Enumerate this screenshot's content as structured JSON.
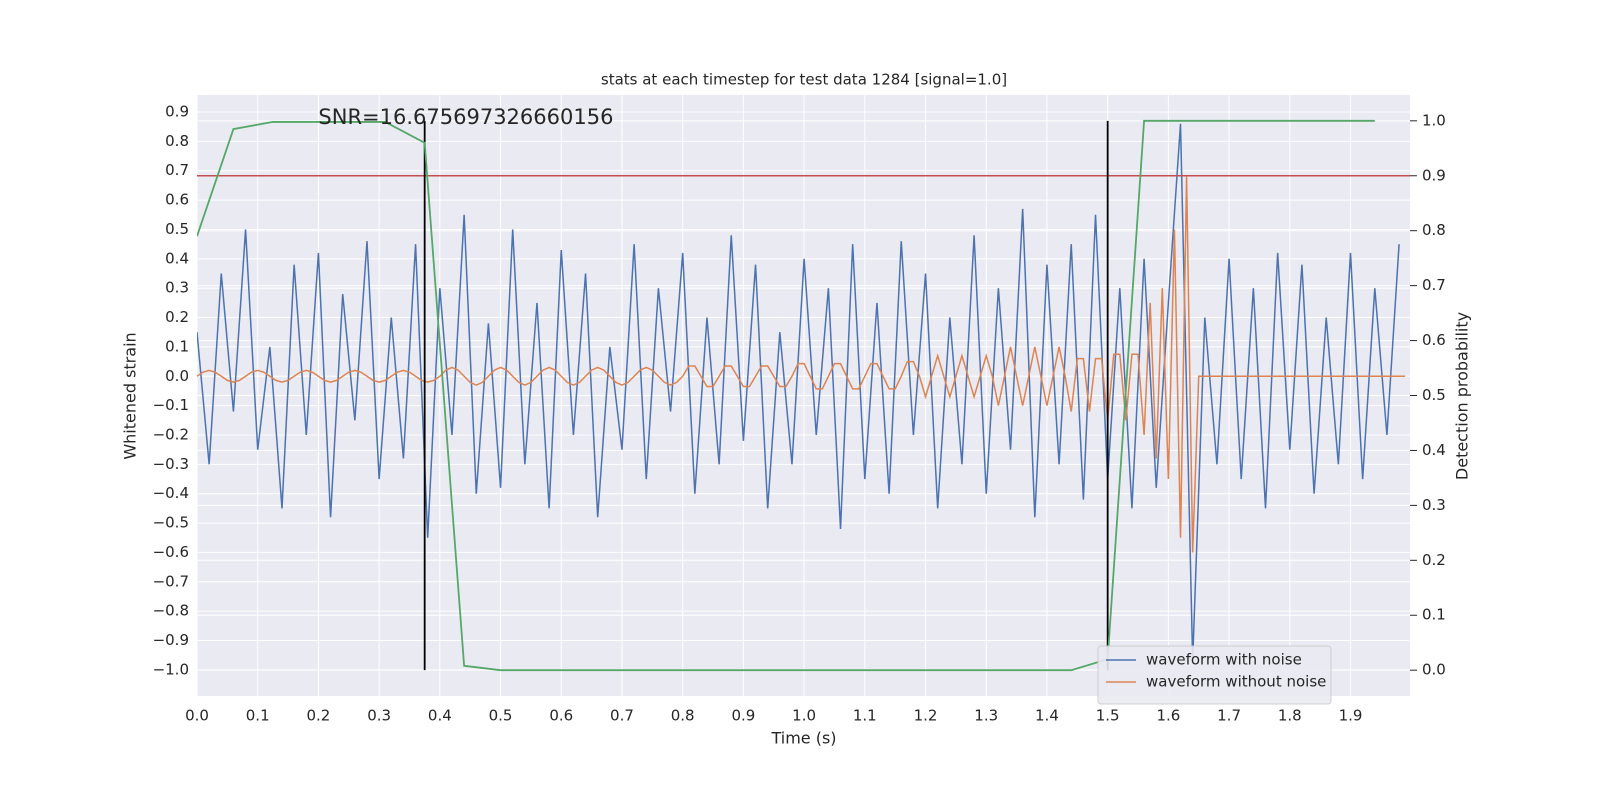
{
  "chart_data": {
    "type": "line",
    "title": "stats at each timestep for test data 1284 [signal=1.0]",
    "xlabel": "Time (s)",
    "ylabel": "Whitened strain",
    "y2label": "Detection probability",
    "xlim": [
      0,
      1.998
    ],
    "ylim": [
      -1.089,
      0.958
    ],
    "y2lim": [
      -0.047,
      1.047
    ],
    "xticks": [
      {
        "value": 0,
        "label": "0.0"
      },
      0.1,
      0.2,
      0.3,
      0.4,
      0.5,
      0.6,
      0.7,
      0.8,
      0.9,
      {
        "value": 1,
        "label": "1.0"
      },
      1.1,
      1.2,
      1.3,
      1.4,
      1.5,
      1.6,
      1.7,
      1.8,
      1.9
    ],
    "yticks": [
      {
        "value": -1,
        "label": "−1.0"
      },
      {
        "value": -0.9,
        "label": "−0.9"
      },
      {
        "value": -0.8,
        "label": "−0.8"
      },
      {
        "value": -0.7,
        "label": "−0.7"
      },
      {
        "value": -0.6,
        "label": "−0.6"
      },
      {
        "value": -0.5,
        "label": "−0.5"
      },
      {
        "value": -0.4,
        "label": "−0.4"
      },
      {
        "value": -0.3,
        "label": "−0.3"
      },
      {
        "value": -0.2,
        "label": "−0.2"
      },
      {
        "value": -0.1,
        "label": "−0.1"
      },
      {
        "value": 0,
        "label": "0.0"
      },
      0.1,
      0.2,
      0.3,
      0.4,
      0.5,
      0.6,
      0.7,
      0.8,
      0.9
    ],
    "y2ticks": [
      {
        "value": 0,
        "label": "0.0"
      },
      0.1,
      0.2,
      0.3,
      0.4,
      0.5,
      0.6,
      0.7,
      0.8,
      0.9,
      {
        "value": 1,
        "label": "1.0"
      }
    ],
    "grid": true,
    "background": "#eaeaf2",
    "legend": "lower right",
    "series": [
      {
        "name": "waveform with noise",
        "color": "#4c72b0",
        "x": [
          0,
          0.02,
          0.04,
          0.06,
          0.08,
          0.1,
          0.12,
          0.14,
          0.16,
          0.18,
          0.2,
          0.22,
          0.24,
          0.26,
          0.28,
          0.3,
          0.32,
          0.34,
          0.36,
          0.38,
          0.4,
          0.42,
          0.44,
          0.46,
          0.48,
          0.5,
          0.52,
          0.54,
          0.56,
          0.58,
          0.6,
          0.62,
          0.64,
          0.66,
          0.68,
          0.7,
          0.72,
          0.74,
          0.76,
          0.78,
          0.8,
          0.82,
          0.84,
          0.86,
          0.88,
          0.9,
          0.92,
          0.94,
          0.96,
          0.98,
          1,
          1.02,
          1.04,
          1.06,
          1.08,
          1.1,
          1.12,
          1.14,
          1.16,
          1.18,
          1.2,
          1.22,
          1.24,
          1.26,
          1.28,
          1.3,
          1.32,
          1.34,
          1.36,
          1.38,
          1.4,
          1.42,
          1.44,
          1.46,
          1.48,
          1.5,
          1.52,
          1.54,
          1.56,
          1.58,
          1.6,
          1.62,
          1.64,
          1.66,
          1.68,
          1.7,
          1.72,
          1.74,
          1.76,
          1.78,
          1.8,
          1.82,
          1.84,
          1.86,
          1.88,
          1.9,
          1.92,
          1.94,
          1.96,
          1.98
        ],
        "values": [
          0.15,
          -0.3,
          0.35,
          -0.12,
          0.5,
          -0.25,
          0.1,
          -0.45,
          0.38,
          -0.2,
          0.42,
          -0.48,
          0.28,
          -0.15,
          0.46,
          -0.35,
          0.2,
          -0.28,
          0.45,
          -0.55,
          0.3,
          -0.2,
          0.55,
          -0.4,
          0.18,
          -0.38,
          0.5,
          -0.3,
          0.25,
          -0.45,
          0.43,
          -0.2,
          0.35,
          -0.48,
          0.1,
          -0.25,
          0.45,
          -0.35,
          0.3,
          -0.12,
          0.42,
          -0.4,
          0.2,
          -0.3,
          0.48,
          -0.22,
          0.38,
          -0.45,
          0.15,
          -0.3,
          0.4,
          -0.2,
          0.3,
          -0.52,
          0.45,
          -0.35,
          0.25,
          -0.4,
          0.46,
          -0.2,
          0.35,
          -0.45,
          0.2,
          -0.3,
          0.48,
          -0.4,
          0.3,
          -0.25,
          0.57,
          -0.48,
          0.38,
          -0.3,
          0.45,
          -0.42,
          0.55,
          -0.35,
          0.3,
          -0.45,
          0.4,
          -0.38,
          0.25,
          0.86,
          -0.97,
          0.2,
          -0.3,
          0.4,
          -0.35,
          0.3,
          -0.45,
          0.42,
          -0.25,
          0.38,
          -0.4,
          0.2,
          -0.3,
          0.42,
          -0.35,
          0.3,
          -0.2,
          0.45
        ]
      },
      {
        "name": "waveform without noise",
        "color": "#dd8452",
        "x": [
          0,
          0.01,
          0.02,
          0.03,
          0.04,
          0.05,
          0.06,
          0.07,
          0.08,
          0.09,
          0.1,
          0.11,
          0.12,
          0.13,
          0.14,
          0.15,
          0.16,
          0.17,
          0.18,
          0.19,
          0.2,
          0.21,
          0.22,
          0.23,
          0.24,
          0.25,
          0.26,
          0.27,
          0.28,
          0.29,
          0.3,
          0.31,
          0.32,
          0.33,
          0.34,
          0.35,
          0.36,
          0.37,
          0.38,
          0.39,
          0.4,
          0.41,
          0.42,
          0.43,
          0.44,
          0.45,
          0.46,
          0.47,
          0.48,
          0.49,
          0.5,
          0.51,
          0.52,
          0.53,
          0.54,
          0.55,
          0.56,
          0.57,
          0.58,
          0.59,
          0.6,
          0.61,
          0.62,
          0.63,
          0.64,
          0.65,
          0.66,
          0.67,
          0.68,
          0.69,
          0.7,
          0.71,
          0.72,
          0.73,
          0.74,
          0.75,
          0.76,
          0.77,
          0.78,
          0.79,
          0.8,
          0.81,
          0.82,
          0.83,
          0.84,
          0.85,
          0.86,
          0.87,
          0.88,
          0.89,
          0.9,
          0.91,
          0.92,
          0.93,
          0.94,
          0.95,
          0.96,
          0.97,
          0.98,
          0.99,
          1,
          1.01,
          1.02,
          1.03,
          1.04,
          1.05,
          1.06,
          1.07,
          1.08,
          1.09,
          1.1,
          1.11,
          1.12,
          1.13,
          1.14,
          1.15,
          1.16,
          1.17,
          1.18,
          1.19,
          1.2,
          1.21,
          1.22,
          1.23,
          1.24,
          1.25,
          1.26,
          1.27,
          1.28,
          1.29,
          1.3,
          1.31,
          1.32,
          1.33,
          1.34,
          1.35,
          1.36,
          1.37,
          1.38,
          1.39,
          1.4,
          1.41,
          1.42,
          1.43,
          1.44,
          1.45,
          1.46,
          1.47,
          1.48,
          1.49,
          1.5,
          1.51,
          1.52,
          1.53,
          1.54,
          1.55,
          1.56,
          1.57,
          1.58,
          1.59,
          1.6,
          1.61,
          1.62,
          1.63,
          1.64,
          1.65,
          1.99
        ],
        "values": [
          0,
          0.014,
          0.02,
          0.014,
          0,
          -0.014,
          -0.02,
          -0.014,
          0,
          0.014,
          0.02,
          0.014,
          0,
          -0.014,
          -0.02,
          -0.014,
          0,
          0.014,
          0.02,
          0.014,
          0,
          -0.014,
          -0.02,
          -0.014,
          0,
          0.014,
          0.02,
          0.014,
          0,
          -0.014,
          -0.02,
          -0.014,
          0,
          0.014,
          0.02,
          0.014,
          0,
          -0.014,
          -0.02,
          -0.014,
          0,
          0.021,
          0.03,
          0.021,
          0,
          -0.021,
          -0.03,
          -0.021,
          0,
          0.021,
          0.03,
          0.021,
          0,
          -0.021,
          -0.03,
          -0.021,
          0,
          0.021,
          0.03,
          0.021,
          0,
          -0.021,
          -0.03,
          -0.021,
          0,
          0.021,
          0.03,
          0.021,
          0,
          -0.021,
          -0.03,
          -0.021,
          0,
          0.021,
          0.03,
          0.021,
          0,
          -0.021,
          -0.03,
          -0.021,
          0,
          0.035,
          0.035,
          0,
          -0.035,
          -0.035,
          0,
          0.035,
          0.035,
          0,
          -0.035,
          -0.035,
          0,
          0.035,
          0.035,
          0,
          -0.035,
          -0.035,
          0,
          0.043,
          0.043,
          0,
          -0.043,
          -0.043,
          0,
          0.043,
          0.043,
          0,
          -0.043,
          -0.043,
          0,
          0.043,
          0.043,
          0,
          -0.043,
          -0.043,
          0,
          0.05,
          0.05,
          0,
          -0.07,
          0,
          0.07,
          0,
          -0.07,
          0,
          0.07,
          0,
          -0.07,
          0,
          0.07,
          0,
          -0.1,
          0,
          0.1,
          0,
          -0.1,
          0,
          0.1,
          0,
          -0.1,
          0,
          0.1,
          0,
          -0.12,
          0.06,
          0.06,
          -0.12,
          0.06,
          0.06,
          -0.15,
          0.075,
          0.075,
          -0.15,
          0.075,
          0.075,
          -0.2,
          0.25,
          -0.28,
          0.3,
          -0.35,
          0.5,
          -0.55,
          0.68,
          -0.6,
          0,
          0
        ]
      },
      {
        "color": "#55a868",
        "axis": "y2",
        "x": [
          0,
          0.06,
          0.125,
          0.31,
          0.375,
          0.44,
          0.5,
          1.44,
          1.5,
          1.56,
          1.94
        ],
        "values": [
          0.79,
          0.985,
          0.998,
          0.998,
          0.96,
          0.008,
          0,
          0,
          0.02,
          1,
          1
        ]
      }
    ],
    "hlines": [
      {
        "y": 0.9,
        "axis": "y2",
        "color": "#c44e52"
      }
    ],
    "vlines": [
      {
        "x": 0.375,
        "ymin": 0,
        "ymax": 1,
        "axis": "y2",
        "color": "#000000"
      },
      {
        "x": 1.5,
        "ymin": 0,
        "ymax": 1,
        "axis": "y2",
        "color": "#000000"
      }
    ],
    "annotations": [
      {
        "text": "SNR=16.675697326660156",
        "x": 0.2,
        "y": 0.88
      }
    ]
  }
}
